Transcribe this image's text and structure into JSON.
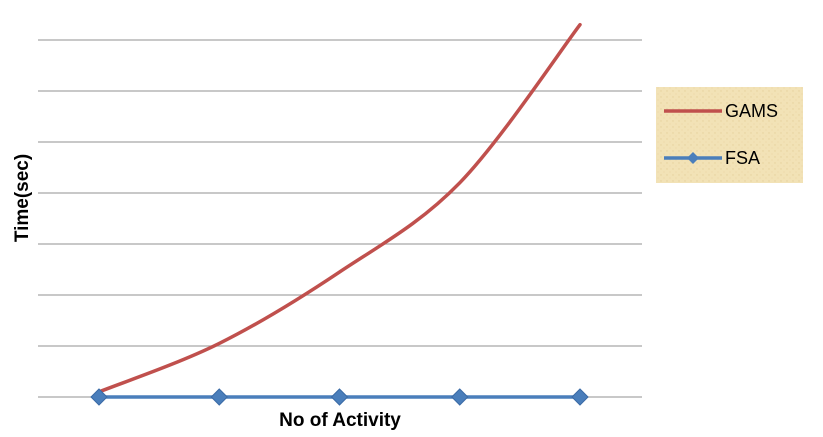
{
  "chart_data": {
    "type": "line",
    "title": "",
    "xlabel": "No of Activity",
    "ylabel": "Time(sec)",
    "x": [
      1,
      2,
      3,
      4,
      5
    ],
    "ylim": [
      0,
      7
    ],
    "grid": true,
    "x_tick_labels_shown": false,
    "y_tick_labels_shown": false,
    "legend_position": "right",
    "series": [
      {
        "name": "GAMS",
        "color": "#C0504D",
        "marker": "none",
        "values": [
          0.1,
          1.05,
          2.45,
          4.2,
          7.3
        ]
      },
      {
        "name": "FSA",
        "color": "#4A7EBB",
        "marker": "diamond",
        "values": [
          0,
          0,
          0,
          0,
          0
        ]
      }
    ]
  },
  "legend": {
    "background": "#F2E2B6"
  }
}
